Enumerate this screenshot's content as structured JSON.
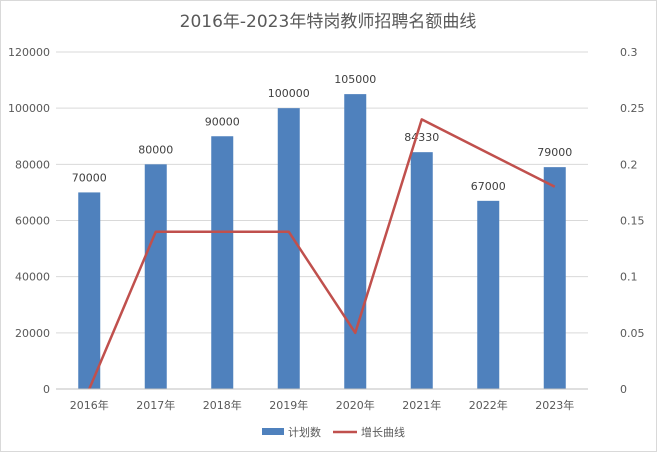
{
  "chart_data": {
    "type": "bar",
    "title": "2016年-2023年特岗教师招聘名额曲线",
    "categories": [
      "2016年",
      "2017年",
      "2018年",
      "2019年",
      "2020年",
      "2021年",
      "2022年",
      "2023年"
    ],
    "series": [
      {
        "name": "计划数",
        "type": "bar",
        "axis": "left",
        "color": "#4f81bd",
        "values": [
          70000,
          80000,
          90000,
          100000,
          105000,
          84330,
          67000,
          79000
        ],
        "data_labels": [
          "70000",
          "80000",
          "90000",
          "100000",
          "105000",
          "84330",
          "67000",
          "79000"
        ]
      },
      {
        "name": "增长曲线",
        "type": "line",
        "axis": "right",
        "color": "#c0504d",
        "values": [
          0,
          0.14,
          0.14,
          0.14,
          0.05,
          0.24,
          0.21,
          0.18
        ]
      }
    ],
    "y_left": {
      "min": 0,
      "max": 120000,
      "ticks": [
        "0",
        "20000",
        "40000",
        "60000",
        "80000",
        "100000",
        "120000"
      ]
    },
    "y_right": {
      "min": 0,
      "max": 0.3,
      "ticks": [
        "0",
        "0.05",
        "0.1",
        "0.15",
        "0.2",
        "0.25",
        "0.3"
      ]
    },
    "grid": true,
    "legend_position": "bottom"
  }
}
